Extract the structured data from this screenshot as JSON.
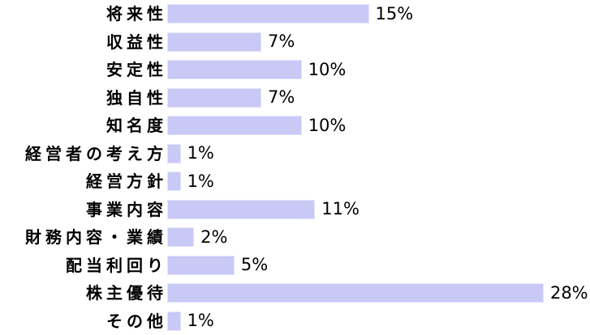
{
  "chart_data": {
    "type": "bar",
    "orientation": "horizontal",
    "title": "",
    "xlabel": "",
    "ylabel": "",
    "grid": false,
    "legend": false,
    "background_color": "#ffffff",
    "bar_color": "#c9c9f6",
    "bar_border_color": "#e4e4fb",
    "text_color": "#000000",
    "xlim": [
      0,
      30
    ],
    "categories": [
      "将来性",
      "収益性",
      "安定性",
      "独自性",
      "知名度",
      "経営者の考え方",
      "経営方針",
      "事業内容",
      "財務内容・業績",
      "配当利回り",
      "株主優待",
      "その他"
    ],
    "values": [
      15,
      7,
      10,
      7,
      10,
      1,
      1,
      11,
      2,
      5,
      28,
      1
    ],
    "value_labels": [
      "15%",
      "7%",
      "10%",
      "7%",
      "10%",
      "1%",
      "1%",
      "11%",
      "2%",
      "5%",
      "28%",
      "1%"
    ]
  }
}
